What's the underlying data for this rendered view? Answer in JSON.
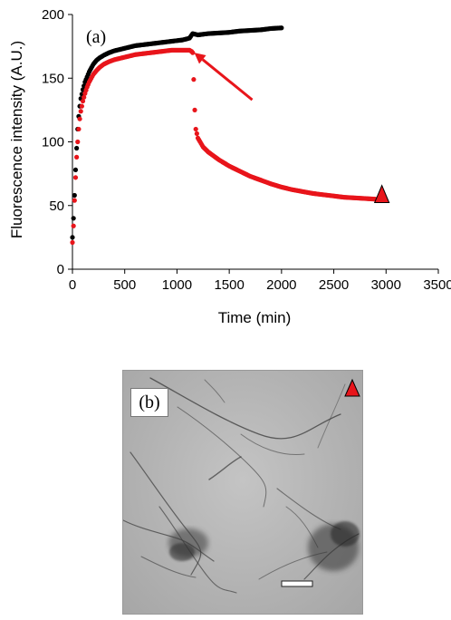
{
  "chart_data": {
    "type": "scatter",
    "panel_label": "(a)",
    "xlabel": "Time (min)",
    "ylabel": "Fluorescence intensity (A.U.)",
    "xlim": [
      0,
      3500
    ],
    "ylim": [
      0,
      200
    ],
    "xticks": [
      "0",
      "500",
      "1000",
      "1500",
      "2000",
      "2500",
      "3000",
      "3500"
    ],
    "yticks": [
      "0",
      "50",
      "100",
      "150",
      "200"
    ],
    "grid": false,
    "legend": "none",
    "series": [
      {
        "color": "#000000",
        "x": [
          0,
          10,
          20,
          30,
          40,
          50,
          60,
          70,
          80,
          100,
          120,
          140,
          160,
          180,
          200,
          230,
          260,
          300,
          350,
          400,
          450,
          500,
          550,
          600,
          650,
          700,
          750,
          800,
          850,
          900,
          950,
          1000,
          1050,
          1100,
          1120,
          1150,
          1200,
          1300,
          1400,
          1500,
          1600,
          1700,
          1800,
          1900,
          2000
        ],
        "y": [
          25,
          40,
          58,
          78,
          95,
          110,
          120,
          128,
          134,
          141,
          147,
          151,
          155,
          158,
          161,
          164,
          166,
          168,
          170,
          171.5,
          172.5,
          173.5,
          174.5,
          175.5,
          176,
          176.5,
          177,
          177.5,
          178,
          178.5,
          179,
          179.5,
          180,
          181,
          181.5,
          185,
          184,
          185,
          185.5,
          186,
          187,
          187.5,
          188,
          189,
          189.5
        ]
      },
      {
        "color": "#e8151b",
        "x": [
          0,
          10,
          20,
          30,
          40,
          50,
          60,
          70,
          80,
          100,
          120,
          140,
          160,
          180,
          200,
          230,
          260,
          300,
          350,
          400,
          450,
          500,
          550,
          600,
          650,
          700,
          750,
          800,
          850,
          900,
          950,
          1000,
          1050,
          1080,
          1100,
          1120,
          1140,
          1150,
          1160,
          1170,
          1180,
          1200,
          1250,
          1300,
          1400,
          1500,
          1600,
          1700,
          1800,
          1900,
          2000,
          2100,
          2200,
          2300,
          2400,
          2500,
          2600,
          2700,
          2800,
          2900
        ],
        "y": [
          21,
          34,
          54,
          72,
          88,
          100,
          110,
          118,
          124,
          132,
          138,
          143,
          147,
          150,
          153,
          156,
          158.5,
          161,
          163,
          164.5,
          165.5,
          166.5,
          167.5,
          168.5,
          169,
          169.5,
          170,
          170.5,
          171,
          171.5,
          172,
          172,
          172,
          172,
          172,
          172,
          171,
          170,
          149,
          125,
          110,
          103,
          96,
          92,
          86,
          81,
          77,
          73,
          70,
          67,
          64.5,
          62.5,
          61,
          59.5,
          58.5,
          57.5,
          56.5,
          56,
          55.5,
          55
        ]
      }
    ],
    "annotations": [
      {
        "type": "arrow",
        "from": [
          1720,
          133
        ],
        "to": [
          1165,
          170
        ],
        "color": "#e8151b"
      },
      {
        "type": "triangle-marker",
        "at": [
          2960,
          58
        ],
        "color": "#e8151b"
      }
    ]
  },
  "micrograph": {
    "panel_label": "(b)",
    "marker_color": "#e8151b"
  }
}
